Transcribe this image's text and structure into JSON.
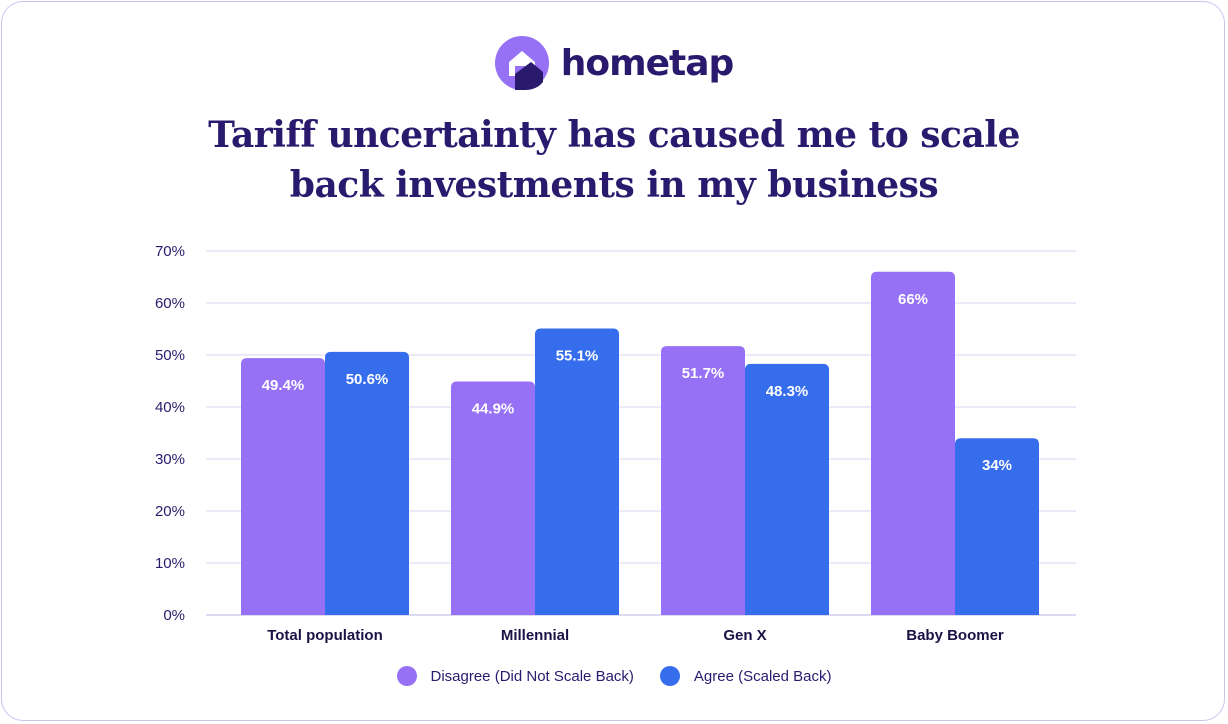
{
  "brand": {
    "name": "hometap",
    "logo_icon": "house-circle-icon",
    "logo_color": "#9670f5",
    "logo_dark": "#2a1a6e"
  },
  "chart_data": {
    "type": "bar",
    "title": [
      "Tariff uncertainty has caused me to scale",
      "back investments in my business"
    ],
    "categories": [
      "Total population",
      "Millennial",
      "Gen X",
      "Baby Boomer"
    ],
    "series": [
      {
        "name": "Disagree (Did Not Scale Back)",
        "color": "#9670f5",
        "values": [
          49.4,
          44.9,
          51.7,
          66
        ],
        "labels": [
          "49.4%",
          "44.9%",
          "51.7%",
          "66%"
        ]
      },
      {
        "name": "Agree (Scaled Back)",
        "color": "#356ded",
        "values": [
          50.6,
          55.1,
          48.3,
          34
        ],
        "labels": [
          "50.6%",
          "55.1%",
          "48.3%",
          "34%"
        ]
      }
    ],
    "yticks": [
      "0%",
      "10%",
      "20%",
      "30%",
      "40%",
      "50%",
      "60%",
      "70%"
    ],
    "ylim": [
      0,
      70
    ],
    "grid": true,
    "legend_position": "bottom-center"
  }
}
